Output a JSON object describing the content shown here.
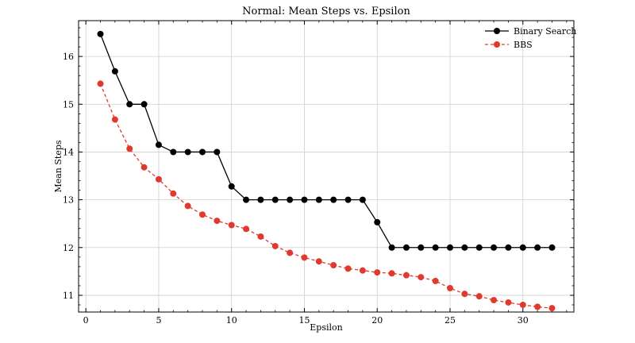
{
  "chart_data": {
    "type": "line",
    "title": "Normal: Mean Steps vs. Epsilon",
    "xlabel": "Epsilon",
    "ylabel": "Mean Steps",
    "xlim": [
      -0.5,
      33.5
    ],
    "ylim": [
      10.65,
      16.75
    ],
    "xticks": [
      0,
      5,
      10,
      15,
      20,
      25,
      30
    ],
    "yticks": [
      11,
      12,
      13,
      14,
      15,
      16
    ],
    "grid": true,
    "legend_position": "top-right",
    "x": [
      1,
      2,
      3,
      4,
      5,
      6,
      7,
      8,
      9,
      10,
      11,
      12,
      13,
      14,
      15,
      16,
      17,
      18,
      19,
      20,
      21,
      22,
      23,
      24,
      25,
      26,
      27,
      28,
      29,
      30,
      31,
      32
    ],
    "series": [
      {
        "name": "Binary Search",
        "color": "#000000",
        "line_style": "solid",
        "values": [
          16.47,
          15.69,
          15.0,
          15.0,
          14.15,
          14.0,
          14.0,
          14.0,
          14.0,
          13.28,
          13.0,
          13.0,
          13.0,
          13.0,
          13.0,
          13.0,
          13.0,
          13.0,
          13.0,
          12.53,
          12.0,
          12.0,
          12.0,
          12.0,
          12.0,
          12.0,
          12.0,
          12.0,
          12.0,
          12.0,
          12.0,
          12.0
        ]
      },
      {
        "name": "BBS",
        "color": "#e03a2f",
        "line_style": "dashed",
        "values": [
          15.43,
          14.68,
          14.07,
          13.68,
          13.43,
          13.13,
          12.87,
          12.69,
          12.56,
          12.47,
          12.39,
          12.23,
          12.03,
          11.89,
          11.79,
          11.71,
          11.63,
          11.56,
          11.52,
          11.48,
          11.46,
          11.42,
          11.38,
          11.3,
          11.15,
          11.03,
          10.98,
          10.9,
          10.85,
          10.8,
          10.76,
          10.73
        ]
      }
    ]
  }
}
